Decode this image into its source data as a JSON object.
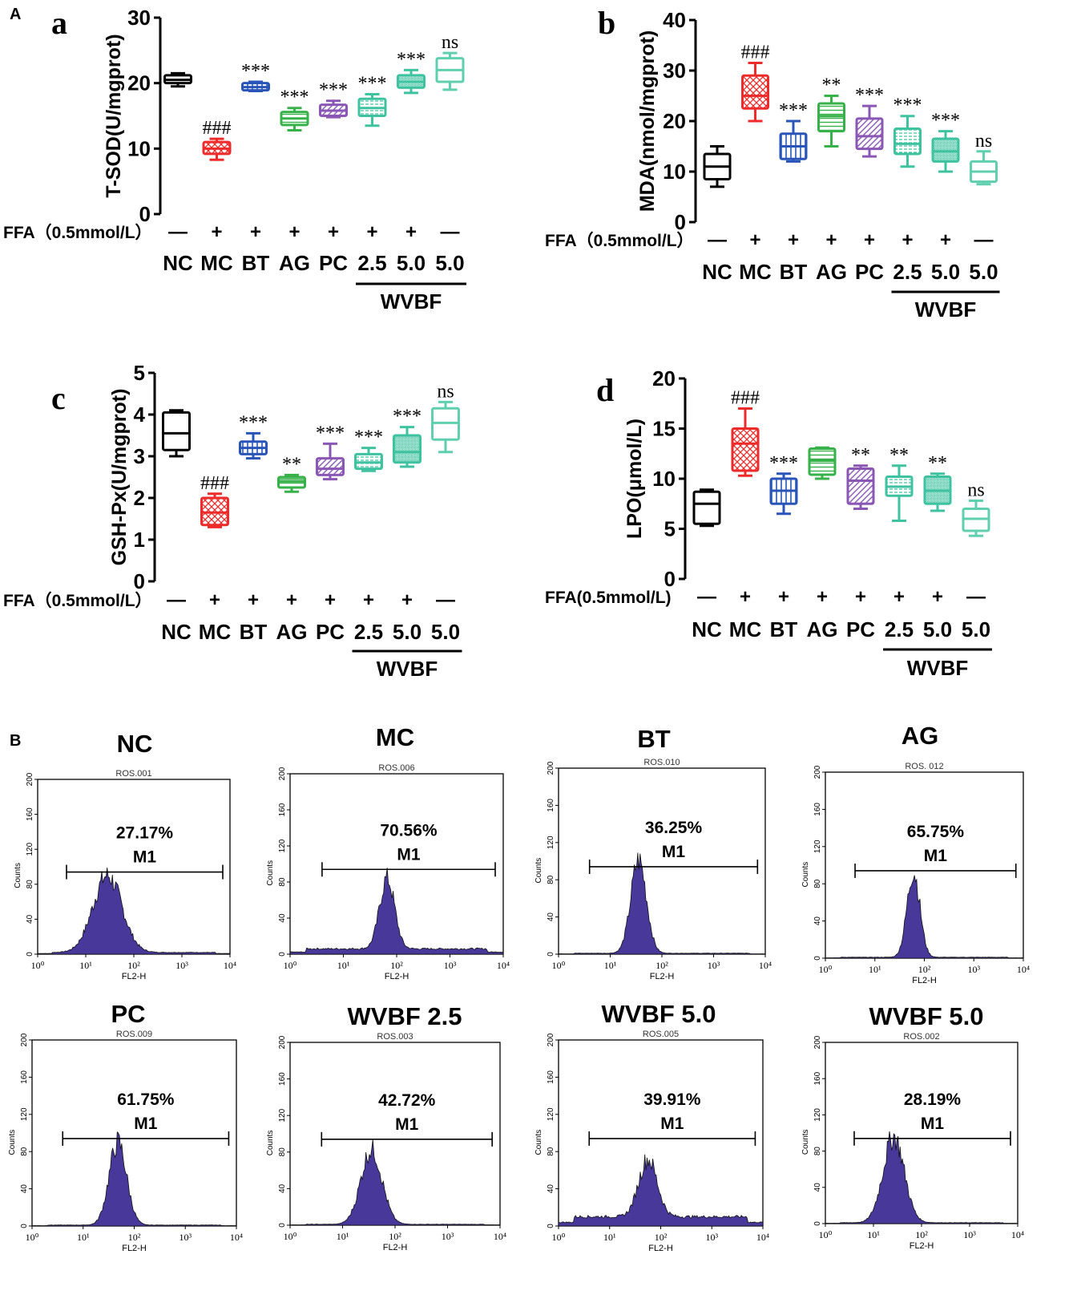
{
  "section_labels": {
    "a": "A",
    "b": "B"
  },
  "colors": {
    "NC": "#000000",
    "MC": "#ee2b2b",
    "BT": "#2a55b8",
    "AG": "#37b24a",
    "PC": "#8a57b5",
    "WVBF1": "#3fc2a0",
    "WVBF2": "#3fc2a0",
    "WVBF3": "#5fcfae",
    "histogram_fill": "#47389a"
  },
  "chart_data": [
    {
      "id": "a",
      "type": "box",
      "panel_label": "a",
      "title": "",
      "xlabel": "",
      "ylabel": "T-SOD(U/mgprot)",
      "ylim": [
        0,
        30
      ],
      "yticks": [
        0,
        10,
        20,
        30
      ],
      "categories": [
        "NC",
        "MC",
        "BT",
        "AG",
        "PC",
        "2.5",
        "5.0",
        "5.0"
      ],
      "treatment_label": "FFA（0.5mmol/L）",
      "treatment": [
        "—",
        "+",
        "+",
        "+",
        "+",
        "+",
        "+",
        "—"
      ],
      "group_label": "WVBF",
      "boxes": [
        {
          "min": 19.5,
          "q1": 20.0,
          "median": 20.5,
          "q3": 21.2,
          "max": 21.5
        },
        {
          "min": 8.3,
          "q1": 9.2,
          "median": 10.0,
          "q3": 11.0,
          "max": 11.5
        },
        {
          "min": 18.8,
          "q1": 18.9,
          "median": 19.4,
          "q3": 20.0,
          "max": 20.2
        },
        {
          "min": 12.8,
          "q1": 13.6,
          "median": 14.6,
          "q3": 15.6,
          "max": 16.2
        },
        {
          "min": 14.8,
          "q1": 15.0,
          "median": 15.8,
          "q3": 16.7,
          "max": 17.3
        },
        {
          "min": 13.5,
          "q1": 15.0,
          "median": 16.2,
          "q3": 17.6,
          "max": 18.3
        },
        {
          "min": 18.5,
          "q1": 19.3,
          "median": 20.2,
          "q3": 21.2,
          "max": 22.0
        },
        {
          "min": 19.0,
          "q1": 20.2,
          "median": 22.0,
          "q3": 23.8,
          "max": 24.6
        }
      ],
      "annotations": [
        "",
        "###",
        "***",
        "***",
        "***",
        "***",
        "***",
        "ns"
      ]
    },
    {
      "id": "b",
      "type": "box",
      "panel_label": "b",
      "title": "",
      "xlabel": "",
      "ylabel": "MDA(nmol/mgprot)",
      "ylim": [
        0,
        40
      ],
      "yticks": [
        0,
        10,
        20,
        30,
        40
      ],
      "categories": [
        "NC",
        "MC",
        "BT",
        "AG",
        "PC",
        "2.5",
        "5.0",
        "5.0"
      ],
      "treatment_label": "FFA（0.5mmol/L）",
      "treatment": [
        "—",
        "+",
        "+",
        "+",
        "+",
        "+",
        "+",
        "—"
      ],
      "group_label": "WVBF",
      "boxes": [
        {
          "min": 7.0,
          "q1": 8.5,
          "median": 11.0,
          "q3": 13.5,
          "max": 15.0
        },
        {
          "min": 20.0,
          "q1": 22.5,
          "median": 25.0,
          "q3": 29.0,
          "max": 31.5
        },
        {
          "min": 12.0,
          "q1": 12.5,
          "median": 15.0,
          "q3": 17.5,
          "max": 20.0
        },
        {
          "min": 15.0,
          "q1": 18.0,
          "median": 21.0,
          "q3": 23.5,
          "max": 25.0
        },
        {
          "min": 13.0,
          "q1": 14.5,
          "median": 17.0,
          "q3": 20.5,
          "max": 23.0
        },
        {
          "min": 11.0,
          "q1": 13.5,
          "median": 15.5,
          "q3": 18.5,
          "max": 21.0
        },
        {
          "min": 10.0,
          "q1": 12.0,
          "median": 14.0,
          "q3": 16.5,
          "max": 18.0
        },
        {
          "min": 7.5,
          "q1": 8.0,
          "median": 10.0,
          "q3": 12.0,
          "max": 14.0
        }
      ],
      "annotations": [
        "",
        "###",
        "***",
        "**",
        "***",
        "***",
        "***",
        "ns"
      ]
    },
    {
      "id": "c",
      "type": "box",
      "panel_label": "c",
      "title": "",
      "xlabel": "",
      "ylabel": "GSH-Px(U/mgprot)",
      "ylim": [
        0,
        5
      ],
      "yticks": [
        0,
        1,
        2,
        3,
        4,
        5
      ],
      "categories": [
        "NC",
        "MC",
        "BT",
        "AG",
        "PC",
        "2.5",
        "5.0",
        "5.0"
      ],
      "treatment_label": "FFA（0.5mmol/L）",
      "treatment": [
        "—",
        "+",
        "+",
        "+",
        "+",
        "+",
        "+",
        "—"
      ],
      "group_label": "WVBF",
      "boxes": [
        {
          "min": 3.0,
          "q1": 3.15,
          "median": 3.55,
          "q3": 4.05,
          "max": 4.1
        },
        {
          "min": 1.3,
          "q1": 1.35,
          "median": 1.65,
          "q3": 2.0,
          "max": 2.1
        },
        {
          "min": 2.95,
          "q1": 3.05,
          "median": 3.2,
          "q3": 3.35,
          "max": 3.55
        },
        {
          "min": 2.15,
          "q1": 2.25,
          "median": 2.4,
          "q3": 2.5,
          "max": 2.55
        },
        {
          "min": 2.45,
          "q1": 2.55,
          "median": 2.7,
          "q3": 2.95,
          "max": 3.3
        },
        {
          "min": 2.65,
          "q1": 2.7,
          "median": 2.85,
          "q3": 3.05,
          "max": 3.2
        },
        {
          "min": 2.75,
          "q1": 2.85,
          "median": 3.1,
          "q3": 3.5,
          "max": 3.7
        },
        {
          "min": 3.1,
          "q1": 3.4,
          "median": 3.8,
          "q3": 4.15,
          "max": 4.3
        }
      ],
      "annotations": [
        "",
        "###",
        "***",
        "**",
        "***",
        "***",
        "***",
        "ns"
      ]
    },
    {
      "id": "d",
      "type": "box",
      "panel_label": "d",
      "title": "",
      "xlabel": "",
      "ylabel": "LPO(μmol/L)",
      "ylim": [
        0,
        20
      ],
      "yticks": [
        0,
        5,
        10,
        15,
        20
      ],
      "categories": [
        "NC",
        "MC",
        "BT",
        "AG",
        "PC",
        "2.5",
        "5.0",
        "5.0"
      ],
      "treatment_label": "FFA(0.5mmol/L)",
      "treatment": [
        "—",
        "+",
        "+",
        "+",
        "+",
        "+",
        "+",
        "—"
      ],
      "group_label": "WVBF",
      "boxes": [
        {
          "min": 5.3,
          "q1": 5.5,
          "median": 7.5,
          "q3": 8.7,
          "max": 8.9
        },
        {
          "min": 10.3,
          "q1": 10.8,
          "median": 13.5,
          "q3": 15.0,
          "max": 17.0
        },
        {
          "min": 6.5,
          "q1": 7.5,
          "median": 8.8,
          "q3": 10.0,
          "max": 10.5
        },
        {
          "min": 10.0,
          "q1": 10.4,
          "median": 11.8,
          "q3": 13.0,
          "max": 13.1
        },
        {
          "min": 7.0,
          "q1": 7.5,
          "median": 9.8,
          "q3": 11.0,
          "max": 11.3
        },
        {
          "min": 5.8,
          "q1": 8.3,
          "median": 9.2,
          "q3": 10.2,
          "max": 11.3
        },
        {
          "min": 6.8,
          "q1": 7.5,
          "median": 8.8,
          "q3": 10.2,
          "max": 10.5
        },
        {
          "min": 4.3,
          "q1": 4.8,
          "median": 6.0,
          "q3": 7.0,
          "max": 7.8
        }
      ],
      "annotations": [
        "",
        "###",
        "***",
        "",
        "**",
        "**",
        "**",
        "ns"
      ]
    },
    {
      "id": "histograms",
      "type": "histogram",
      "xlabel": "FL2-H",
      "ylabel": "Counts",
      "xticks": [
        "10⁰",
        "10¹",
        "10²",
        "10³",
        "10⁴"
      ],
      "yticks": [
        0,
        40,
        80,
        120,
        160,
        200
      ],
      "gate_label": "M1",
      "panels": [
        {
          "title": "NC",
          "subtitle": "ROS.001",
          "percent": "27.17%",
          "peak_log": 1.45,
          "peak_count": 88,
          "width": 0.3,
          "baseline": 2
        },
        {
          "title": "MC",
          "subtitle": "ROS.006",
          "percent": "70.56%",
          "peak_log": 1.82,
          "peak_count": 78,
          "width": 0.14,
          "baseline": 6
        },
        {
          "title": "BT",
          "subtitle": "ROS.010",
          "percent": "36.25%",
          "peak_log": 1.55,
          "peak_count": 100,
          "width": 0.15,
          "baseline": 1
        },
        {
          "title": "AG",
          "subtitle": "ROS. 012",
          "percent": "65.75%",
          "peak_log": 1.78,
          "peak_count": 92,
          "width": 0.13,
          "baseline": 1
        },
        {
          "title": "PC",
          "subtitle": "ROS.009",
          "percent": "61.75%",
          "peak_log": 1.68,
          "peak_count": 89,
          "width": 0.17,
          "baseline": 1
        },
        {
          "title": "WVBF 2.5",
          "subtitle": "ROS.003",
          "percent": "42.72%",
          "peak_log": 1.55,
          "peak_count": 82,
          "width": 0.2,
          "baseline": 1
        },
        {
          "title": "WVBF 5.0",
          "subtitle": "ROS.005",
          "percent": "39.91%",
          "peak_log": 1.75,
          "peak_count": 62,
          "width": 0.18,
          "baseline": 10
        },
        {
          "title": "WVBF 5.0",
          "subtitle": "ROS.002",
          "percent": "28.19%",
          "peak_log": 1.42,
          "peak_count": 95,
          "width": 0.22,
          "baseline": 1
        }
      ]
    }
  ]
}
